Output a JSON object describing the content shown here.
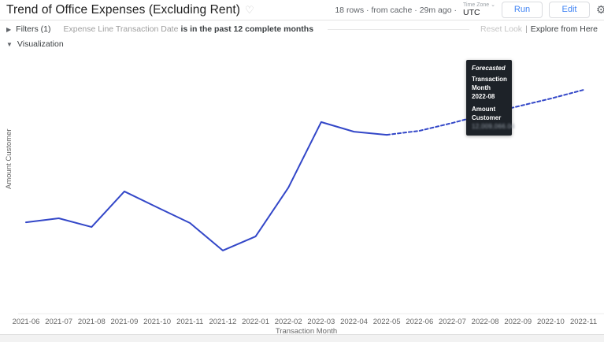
{
  "header": {
    "title": "Trend of Office Expenses (Excluding Rent)",
    "favorite_icon": "heart-outline",
    "query_status": "18 rows · from cache · 29m ago ·",
    "timezone_label": "Time Zone ⌄",
    "timezone_value": "UTC",
    "run_label": "Run",
    "edit_label": "Edit",
    "settings_icon": "gear"
  },
  "filters": {
    "toggle_label": "Filters (1)",
    "expander_icon": "caret-right",
    "filter_field": "Expense Line Transaction Date",
    "filter_condition": "is in the past 12 complete months",
    "reset_label": "Reset Look",
    "separator": "|",
    "explore_label": "Explore from Here"
  },
  "visualization": {
    "toggle_label": "Visualization",
    "expander_icon": "caret-down"
  },
  "tooltip": {
    "badge": "Forecasted",
    "dim_label": "Transaction Month",
    "dim_value": "2022-08",
    "measure_label": "Amount Customer",
    "measure_value": "12,009,066.04",
    "value_redacted": true
  },
  "chart_data": {
    "type": "line",
    "title": "",
    "xlabel": "Transaction Month",
    "ylabel": "Amount Customer",
    "x": [
      "2021-06",
      "2021-07",
      "2021-08",
      "2021-09",
      "2021-10",
      "2021-11",
      "2021-12",
      "2022-01",
      "2022-02",
      "2022-03",
      "2022-04",
      "2022-05",
      "2022-06",
      "2022-07",
      "2022-08",
      "2022-09",
      "2022-10",
      "2022-11"
    ],
    "series": [
      {
        "name": "Amount Customer (actual)",
        "style": "solid",
        "color": "#3347c8",
        "values": [
          40.8,
          42.6,
          38.7,
          54.6,
          47.5,
          40.5,
          28.2,
          34.5,
          56.3,
          85.6,
          81.3,
          79.9,
          null,
          null,
          null,
          null,
          null,
          null
        ]
      },
      {
        "name": "Amount Customer (forecast)",
        "style": "dashed",
        "color": "#3347c8",
        "values": [
          null,
          null,
          null,
          null,
          null,
          null,
          null,
          null,
          null,
          null,
          null,
          79.9,
          81.7,
          85.2,
          89.1,
          92.6,
          96.1,
          100
        ]
      }
    ],
    "ylim": [
      0,
      115
    ],
    "y_axis_tick_labels": "hidden",
    "units": "relative scale 0-100 (y-axis values not shown in screenshot)",
    "grid": false,
    "legend": "none",
    "highlight": {
      "x": "2022-08",
      "series": 1
    }
  }
}
